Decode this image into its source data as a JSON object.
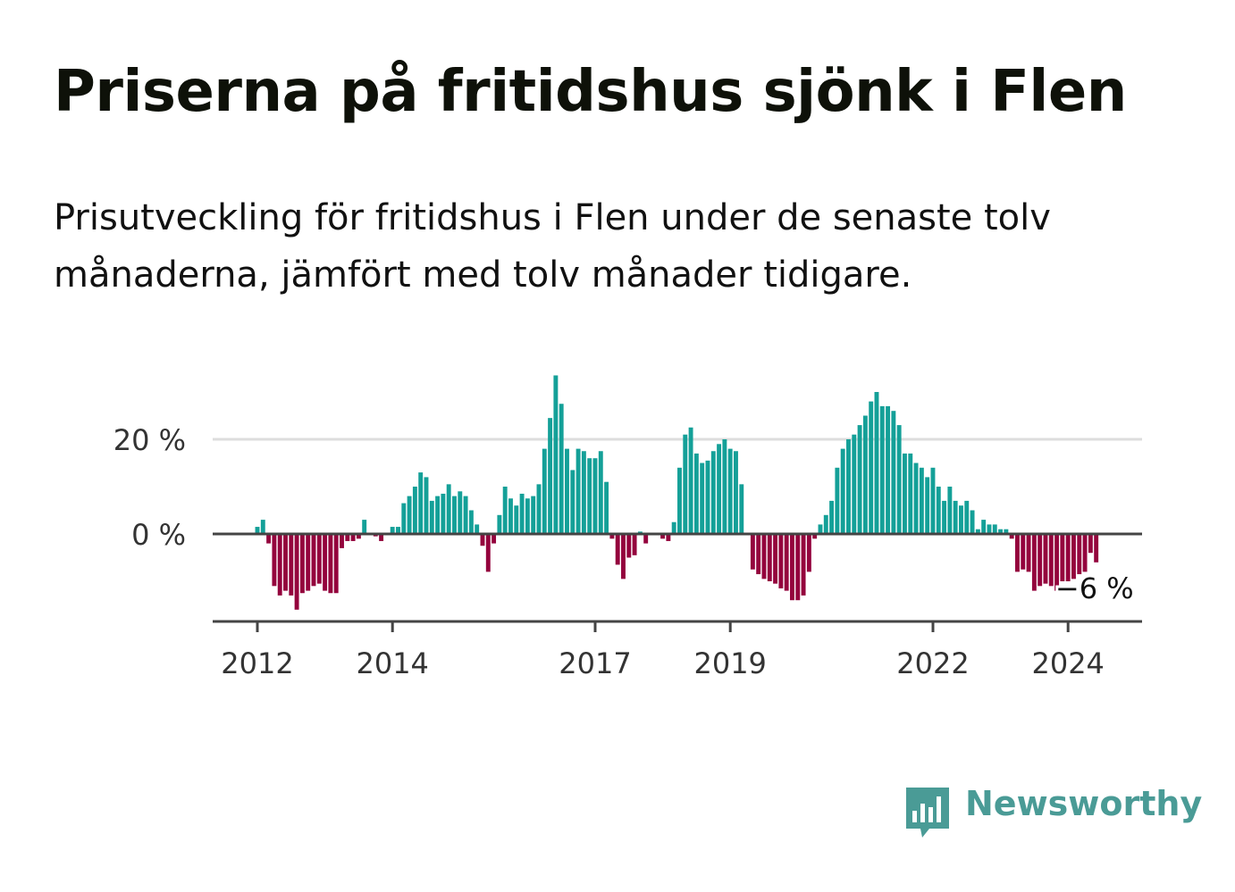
{
  "title": "Priserna på fritidshus sjönk i Flen",
  "subtitle": "Prisutveckling för fritidshus i Flen under de senaste tolv månaderna, jämfört med tolv månader tidigare.",
  "colors": {
    "positive": "#14a098",
    "negative": "#94033d",
    "grid": "#dddddd",
    "axis": "#444444",
    "brand": "#4a9b96"
  },
  "brand": {
    "name": "Newsworthy",
    "icon": "bar-chart-speech-bubble-icon"
  },
  "chart_data": {
    "type": "bar",
    "title": "Priserna på fritidshus sjönk i Flen",
    "xlabel": "",
    "ylabel": "",
    "unit": "%",
    "x_start": 2012.0,
    "x_step": 0.08333,
    "xlim": [
      2011.67,
      2025.5
    ],
    "ylim": [
      -18,
      35
    ],
    "yticks": [
      {
        "value": 0,
        "label": "0 %"
      },
      {
        "value": 20,
        "label": "20 %"
      }
    ],
    "xticks": [
      {
        "value": 2012,
        "label": "2012"
      },
      {
        "value": 2014,
        "label": "2014"
      },
      {
        "value": 2017,
        "label": "2017"
      },
      {
        "value": 2019,
        "label": "2019"
      },
      {
        "value": 2022,
        "label": "2022"
      },
      {
        "value": 2024,
        "label": "2024"
      }
    ],
    "end_label": "−6 %",
    "values": [
      1.5,
      3,
      -2,
      -11,
      -13,
      -12,
      -13,
      -16,
      -12.5,
      -12,
      -11,
      -10.5,
      -12,
      -12.5,
      -12.5,
      -3,
      -1.5,
      -1.5,
      -1,
      3,
      0,
      -0.5,
      -1.5,
      0,
      1.5,
      1.5,
      6.5,
      8,
      10,
      13,
      12,
      7,
      8,
      8.5,
      10.5,
      8,
      9,
      8,
      5,
      2,
      -2.5,
      -8,
      -2,
      4,
      10,
      7.5,
      6,
      8.5,
      7.5,
      8,
      10.5,
      18,
      24.5,
      33.5,
      27.5,
      18,
      13.5,
      18,
      17.5,
      16,
      16,
      17.5,
      11,
      -1,
      -6.5,
      -9.5,
      -5,
      -4.5,
      0.5,
      -2,
      0,
      0,
      -1,
      -1.5,
      2.5,
      14,
      21,
      22.5,
      17,
      15,
      15.5,
      17.5,
      19,
      20,
      18,
      17.5,
      10.5,
      0,
      -7.5,
      -8.5,
      -9.5,
      -10,
      -10.5,
      -11.5,
      -12,
      -14,
      -14,
      -13,
      -8,
      -1,
      2,
      4,
      7,
      14,
      18,
      20,
      21,
      23,
      25,
      28,
      30,
      27,
      27,
      26,
      23,
      17,
      17,
      15,
      14,
      12,
      14,
      10,
      7,
      10,
      7,
      6,
      7,
      5,
      1,
      3,
      2,
      2,
      1,
      1,
      -1,
      -8,
      -7.5,
      -8,
      -12,
      -11,
      -10.5,
      -11,
      -12,
      -10,
      -10,
      -9.5,
      -8.5,
      -8,
      -4,
      -6
    ]
  }
}
